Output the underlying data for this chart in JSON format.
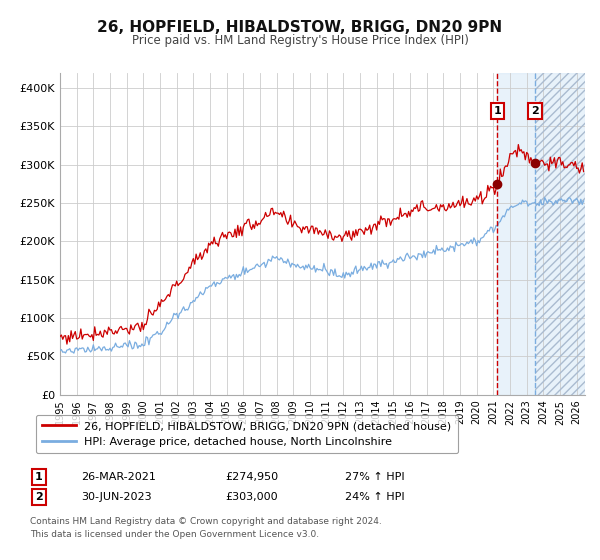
{
  "title": "26, HOPFIELD, HIBALDSTOW, BRIGG, DN20 9PN",
  "subtitle": "Price paid vs. HM Land Registry's House Price Index (HPI)",
  "xlim": [
    1995.0,
    2026.5
  ],
  "ylim": [
    0,
    420000
  ],
  "yticks": [
    0,
    50000,
    100000,
    150000,
    200000,
    250000,
    300000,
    350000,
    400000
  ],
  "ytick_labels": [
    "£0",
    "£50K",
    "£100K",
    "£150K",
    "£200K",
    "£250K",
    "£300K",
    "£350K",
    "£400K"
  ],
  "xticks": [
    1995,
    1996,
    1997,
    1998,
    1999,
    2000,
    2001,
    2002,
    2003,
    2004,
    2005,
    2006,
    2007,
    2008,
    2009,
    2010,
    2011,
    2012,
    2013,
    2014,
    2015,
    2016,
    2017,
    2018,
    2019,
    2020,
    2021,
    2022,
    2023,
    2024,
    2025,
    2026
  ],
  "red_line_color": "#cc0000",
  "blue_line_color": "#7aade0",
  "marker_color": "#8b0000",
  "vline1_x": 2021.23,
  "vline2_x": 2023.5,
  "point1_x": 2021.23,
  "point1_y": 274950,
  "point2_x": 2023.5,
  "point2_y": 303000,
  "shade_color": "#ddeeff",
  "label1_date": "26-MAR-2021",
  "label1_price": "£274,950",
  "label1_hpi": "27% ↑ HPI",
  "label2_date": "30-JUN-2023",
  "label2_price": "£303,000",
  "label2_hpi": "24% ↑ HPI",
  "legend_red": "26, HOPFIELD, HIBALDSTOW, BRIGG, DN20 9PN (detached house)",
  "legend_blue": "HPI: Average price, detached house, North Lincolnshire",
  "footnote1": "Contains HM Land Registry data © Crown copyright and database right 2024.",
  "footnote2": "This data is licensed under the Open Government Licence v3.0.",
  "background_color": "#ffffff",
  "plot_bg_color": "#ffffff",
  "grid_color": "#cccccc"
}
